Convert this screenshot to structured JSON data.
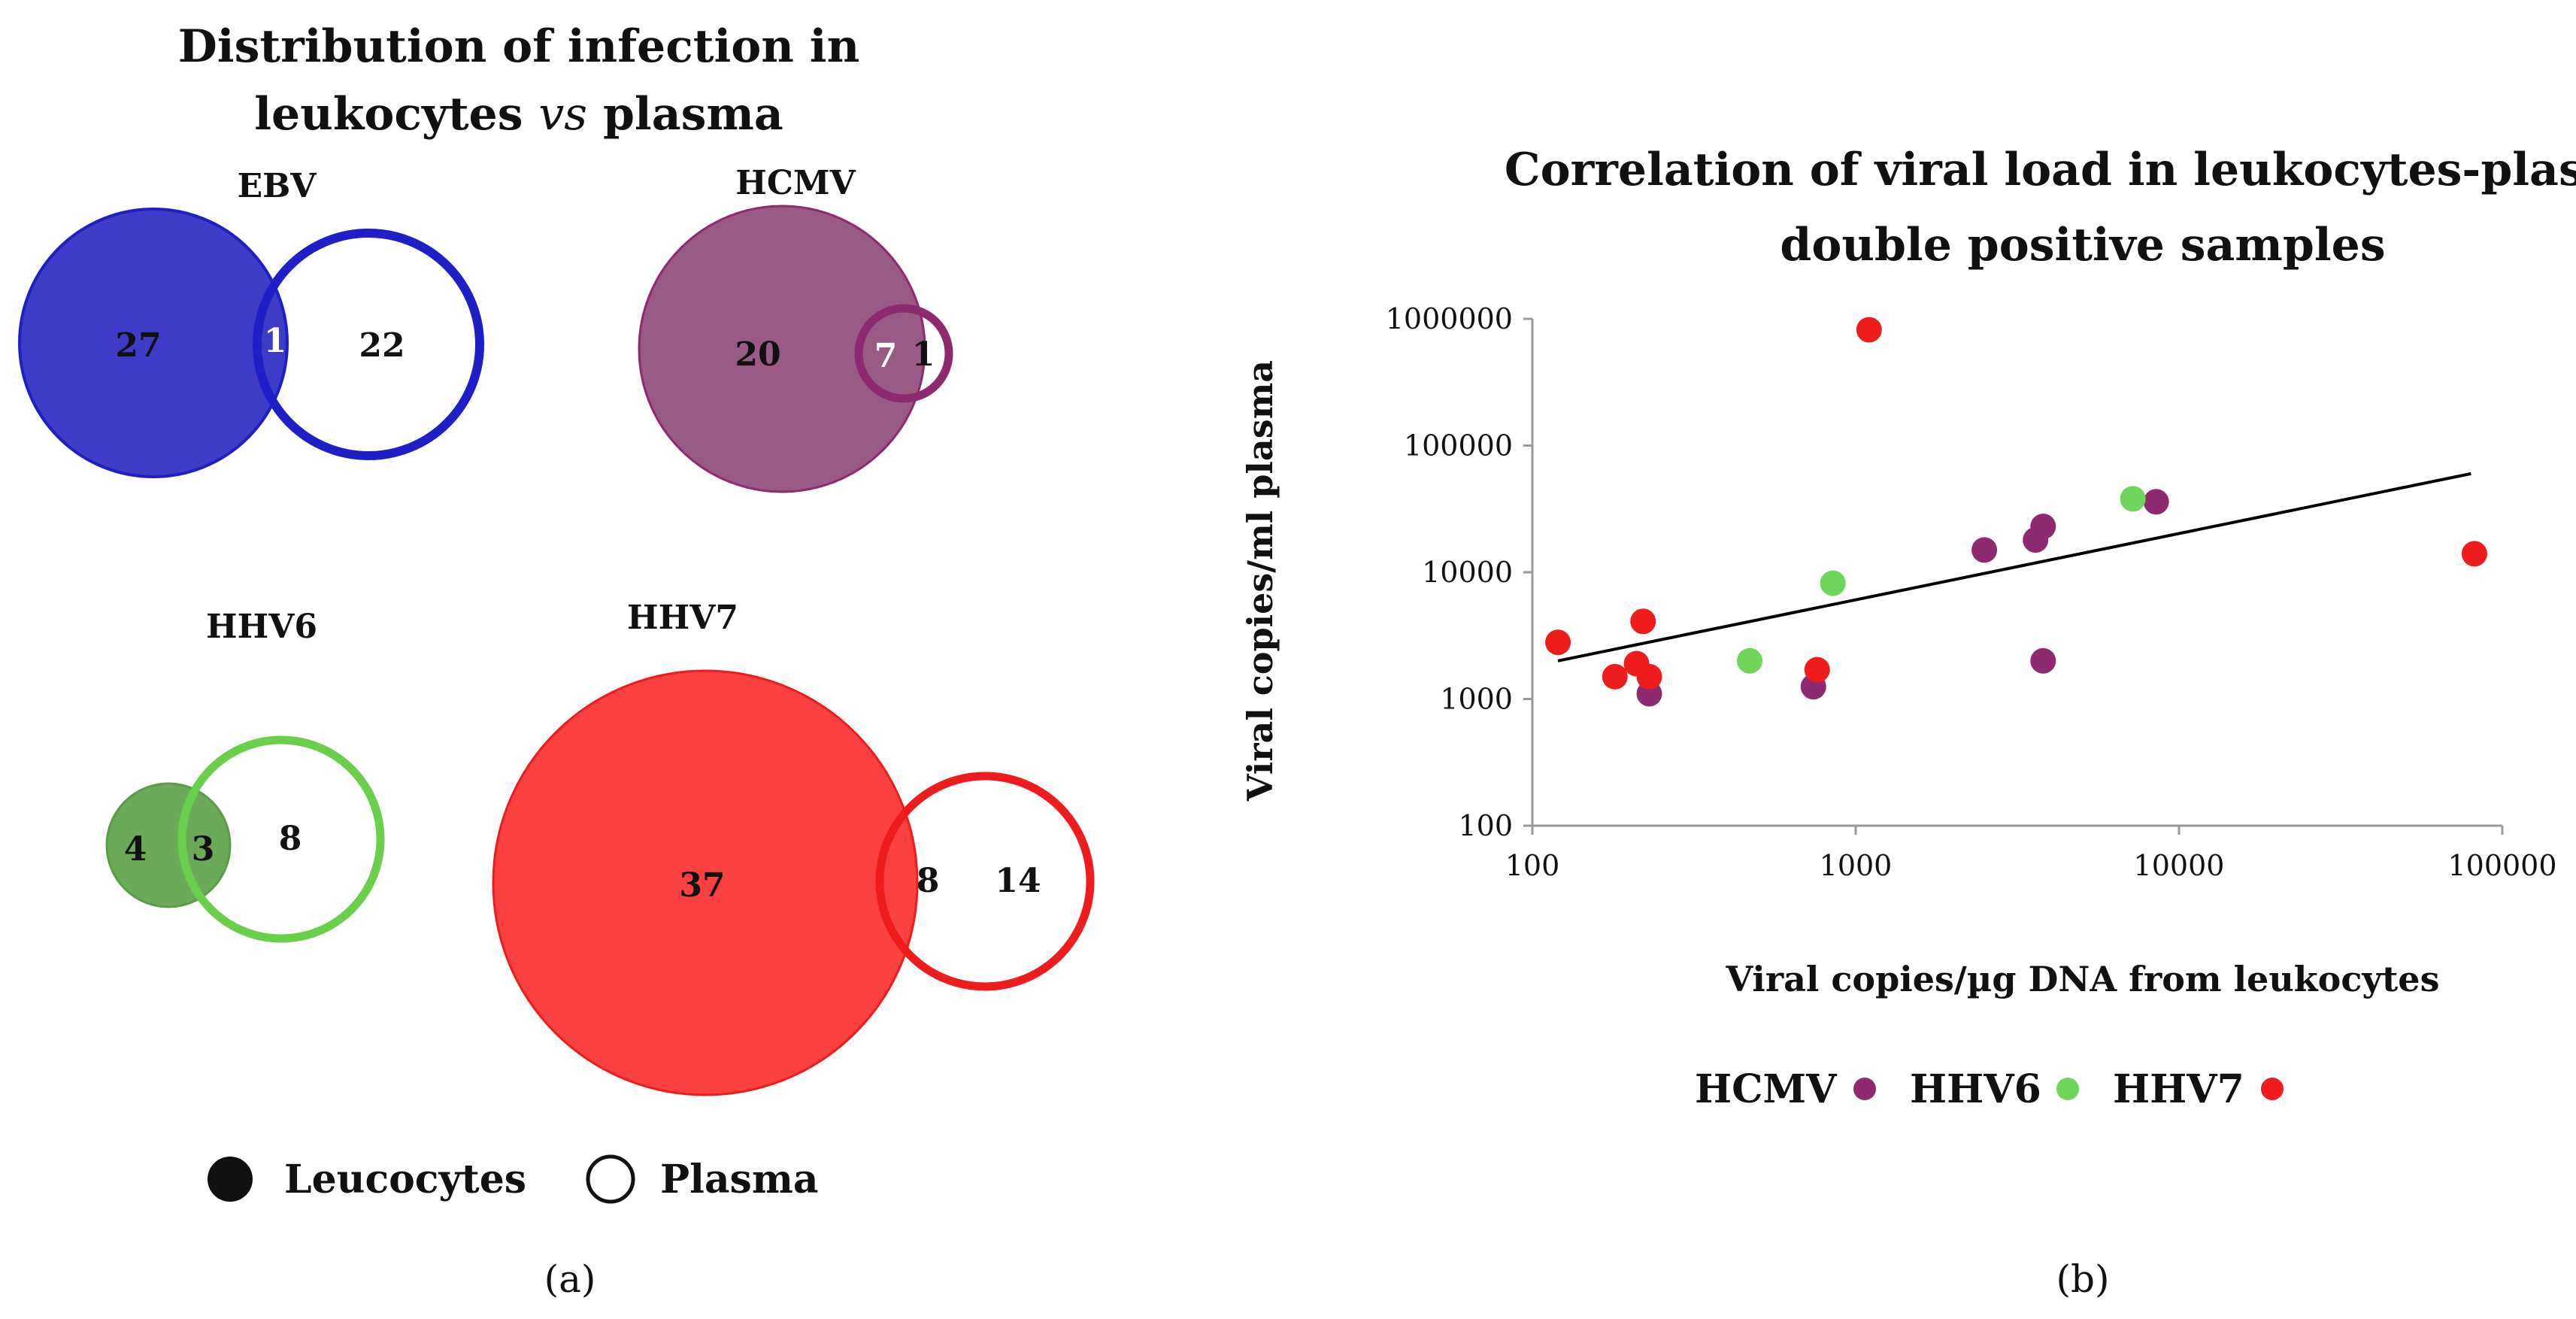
{
  "panel_a": {
    "title_line1": "Distribution of infection in",
    "title_line2_pre": "leukocytes ",
    "title_line2_italic": "vs",
    "title_line2_post": " plasma",
    "label": "(a)",
    "legend": {
      "filled": "Leucocytes",
      "open": "Plasma"
    },
    "venns": [
      {
        "name": "EBV",
        "leukocytes_only": "27",
        "both": "1",
        "plasma_only": "22",
        "color": "#1f1fc8",
        "fill": "#3c3cc6"
      },
      {
        "name": "HCMV",
        "leukocytes_only": "20",
        "both": "7",
        "plasma_only": "1",
        "color": "#8e2a70",
        "fill": "#9a5a86"
      },
      {
        "name": "HHV6",
        "leukocytes_only": "4",
        "both": "3",
        "plasma_only": "8",
        "color": "#6ad04c",
        "fill": "#6aaa58"
      },
      {
        "name": "HHV7",
        "leukocytes_only": "37",
        "both": "8",
        "plasma_only": "14",
        "color": "#ee1c1c",
        "fill": "#fa4040"
      }
    ]
  },
  "panel_b": {
    "label": "(b)",
    "chart_data": {
      "type": "scatter",
      "title": "Correlation of viral load in leukocytes-plasma double positive samples",
      "title_line1": "Correlation of viral load in leukocytes-plasma",
      "title_line2": "double positive samples",
      "xlabel": "Viral copies/µg DNA from leukocytes",
      "ylabel": "Viral copies/ml plasma",
      "xscale": "log",
      "yscale": "log",
      "xlim": [
        100,
        100000
      ],
      "ylim": [
        100,
        1000000
      ],
      "xticks": [
        "100",
        "1000",
        "10000",
        "100000"
      ],
      "yticks": [
        "100",
        "1000",
        "10000",
        "100000",
        "1000000"
      ],
      "trendline": {
        "x": [
          120,
          80000
        ],
        "y": [
          2000,
          60000
        ]
      },
      "series": [
        {
          "name": "HCMV",
          "color": "#8e2a70",
          "points": [
            [
              230,
              1100
            ],
            [
              740,
              1250
            ],
            [
              2500,
              15000
            ],
            [
              3600,
              18000
            ],
            [
              3800,
              23000
            ],
            [
              8500,
              36000
            ],
            [
              3800,
              2000
            ]
          ]
        },
        {
          "name": "HHV6",
          "color": "#6fd55a",
          "points": [
            [
              470,
              2000
            ],
            [
              850,
              8200
            ],
            [
              7200,
              38000
            ]
          ]
        },
        {
          "name": "HHV7",
          "color": "#ee1c1c",
          "points": [
            [
              120,
              2800
            ],
            [
              180,
              1500
            ],
            [
              210,
              1900
            ],
            [
              220,
              4100
            ],
            [
              230,
              1500
            ],
            [
              760,
              1700
            ],
            [
              1100,
              820000
            ],
            [
              82000,
              14000
            ]
          ]
        }
      ],
      "legend_position": "bottom"
    }
  }
}
